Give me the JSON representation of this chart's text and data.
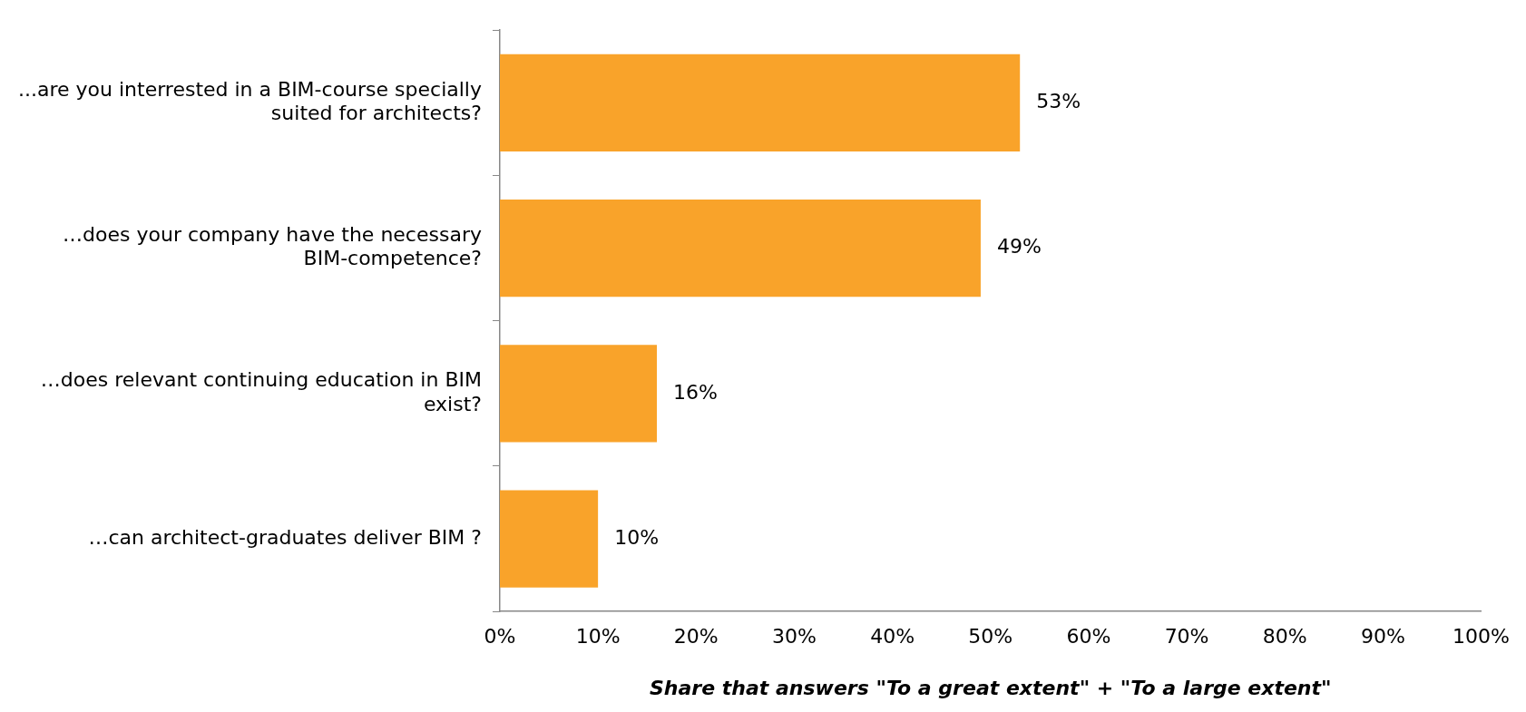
{
  "chart_data": {
    "type": "bar",
    "orientation": "horizontal",
    "xlabel": "Share that answers \"To a great extent\" + \"To a large extent\"",
    "categories": [
      "...are you interrested in a BIM-course specially suited for architects?",
      "…does your company have the necessary BIM-competence?",
      "…does relevant continuing education in BIM exist?",
      "…can architect-graduates deliver BIM ?"
    ],
    "values": [
      53,
      49,
      16,
      10
    ],
    "color": "#f9a32a",
    "xlim": [
      0,
      100
    ],
    "xticks": [
      {
        "value": 0,
        "label": "0%"
      },
      {
        "value": 10,
        "label": "10%"
      },
      {
        "value": 20,
        "label": "20%"
      },
      {
        "value": 30,
        "label": "30%"
      },
      {
        "value": 40,
        "label": "40%"
      },
      {
        "value": 50,
        "label": "50%"
      },
      {
        "value": 60,
        "label": "60%"
      },
      {
        "value": 70,
        "label": "70%"
      },
      {
        "value": 80,
        "label": "80%"
      },
      {
        "value": 90,
        "label": "90%"
      },
      {
        "value": 100,
        "label": "100%"
      }
    ],
    "value_labels": [
      "53%",
      "49%",
      "16%",
      "10%"
    ],
    "grid": false,
    "legend": false
  }
}
